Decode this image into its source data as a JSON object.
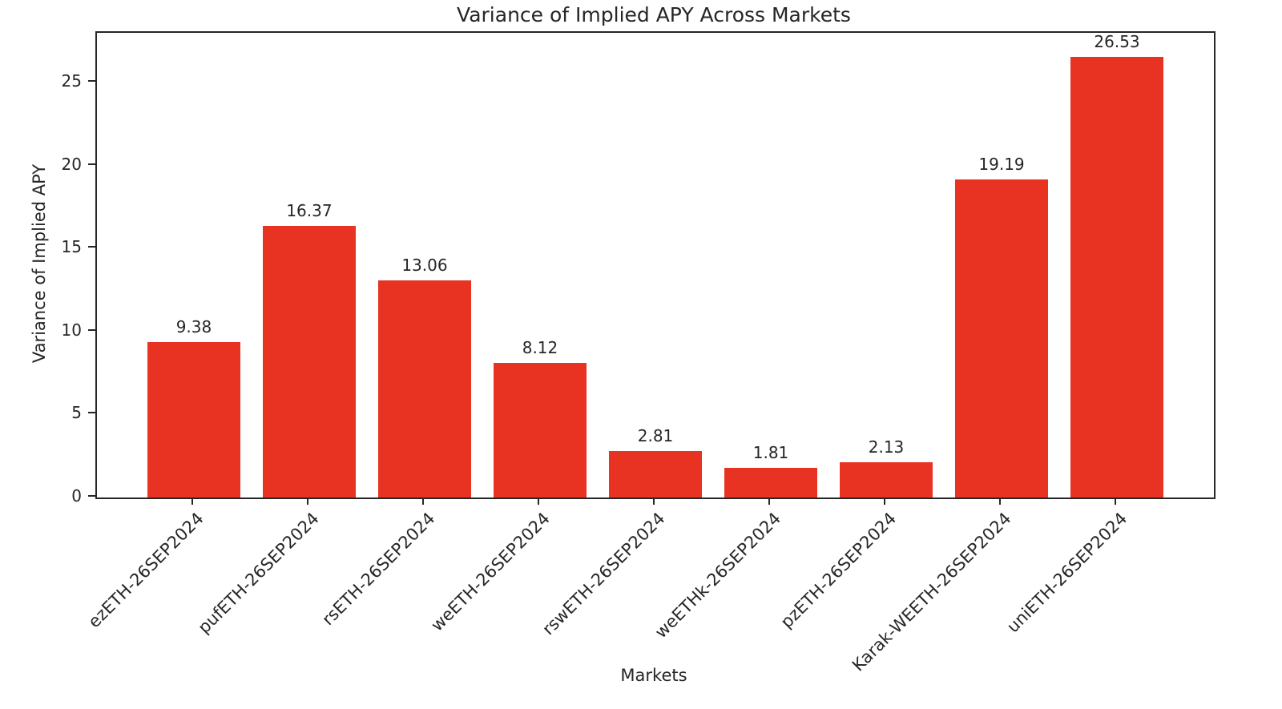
{
  "chart_data": {
    "type": "bar",
    "title": "Variance of Implied APY Across Markets",
    "xlabel": "Markets",
    "ylabel": "Variance of Implied APY",
    "categories": [
      "ezETH-26SEP2024",
      "pufETH-26SEP2024",
      "rsETH-26SEP2024",
      "weETH-26SEP2024",
      "rswETH-26SEP2024",
      "weETHk-26SEP2024",
      "pzETH-26SEP2024",
      "Karak-WEETH-26SEP2024",
      "uniETH-26SEP2024"
    ],
    "values": [
      9.38,
      16.37,
      13.06,
      8.12,
      2.81,
      1.81,
      2.13,
      19.19,
      26.53
    ],
    "bar_labels": [
      "9.38",
      "16.37",
      "13.06",
      "8.12",
      "2.81",
      "1.81",
      "2.13",
      "19.19",
      "26.53"
    ],
    "yticks": [
      0,
      5,
      10,
      15,
      20,
      25
    ],
    "ylim": [
      0,
      28
    ],
    "grid": false,
    "legend": null,
    "bar_color": "#e93322",
    "axis_color": "#262626"
  }
}
